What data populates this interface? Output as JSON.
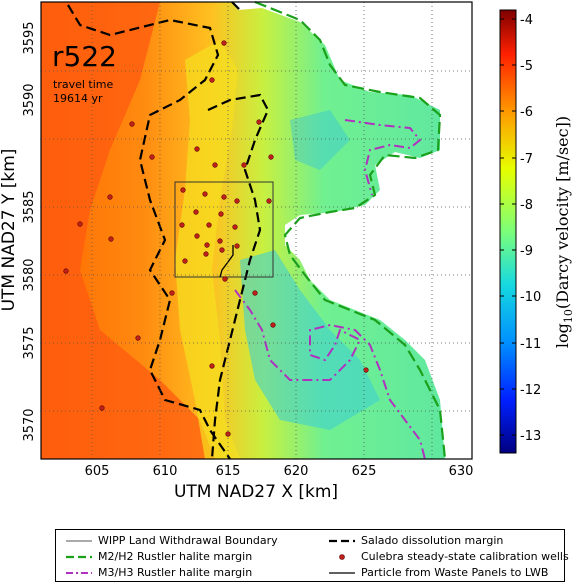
{
  "map": {
    "run_id": "r522",
    "travel_time_label": "travel time",
    "travel_time_value": "19614 yr",
    "x_label": "UTM NAD27 X [km]",
    "y_label": "UTM NAD27 Y [km]",
    "x_ticks": [
      "605",
      "610",
      "615",
      "620",
      "625",
      "630"
    ],
    "y_ticks": [
      "3570",
      "3575",
      "3580",
      "3585",
      "3590",
      "3595"
    ]
  },
  "colorbar": {
    "label_prefix": "log",
    "label_sub": "10",
    "label_suffix": "(Darcy velocity [m/sec])",
    "ticks": [
      "-4",
      "-5",
      "-6",
      "-7",
      "-8",
      "-9",
      "-10",
      "-11",
      "-12",
      "-13"
    ],
    "colors": [
      "#7f0000",
      "#ff2000",
      "#ff9a00",
      "#e6ff00",
      "#7cff7a",
      "#16d9e0",
      "#0090ff",
      "#0020ff",
      "#000080"
    ]
  },
  "legend": {
    "items": [
      {
        "label": "WIPP Land Withdrawal Boundary",
        "color": "#555555"
      },
      {
        "label": "Salado dissolution margin",
        "color": "#000000"
      },
      {
        "label": "M2/H2 Rustler halite margin",
        "color": "#1aa01a"
      },
      {
        "label": "Culebra steady-state calibration wells",
        "color": "#c0201a"
      },
      {
        "label": "M3/H3 Rustler halite margin",
        "color": "#b030c0"
      },
      {
        "label": "Particle from Waste Panels to LWB",
        "color": "#000000"
      }
    ]
  }
}
